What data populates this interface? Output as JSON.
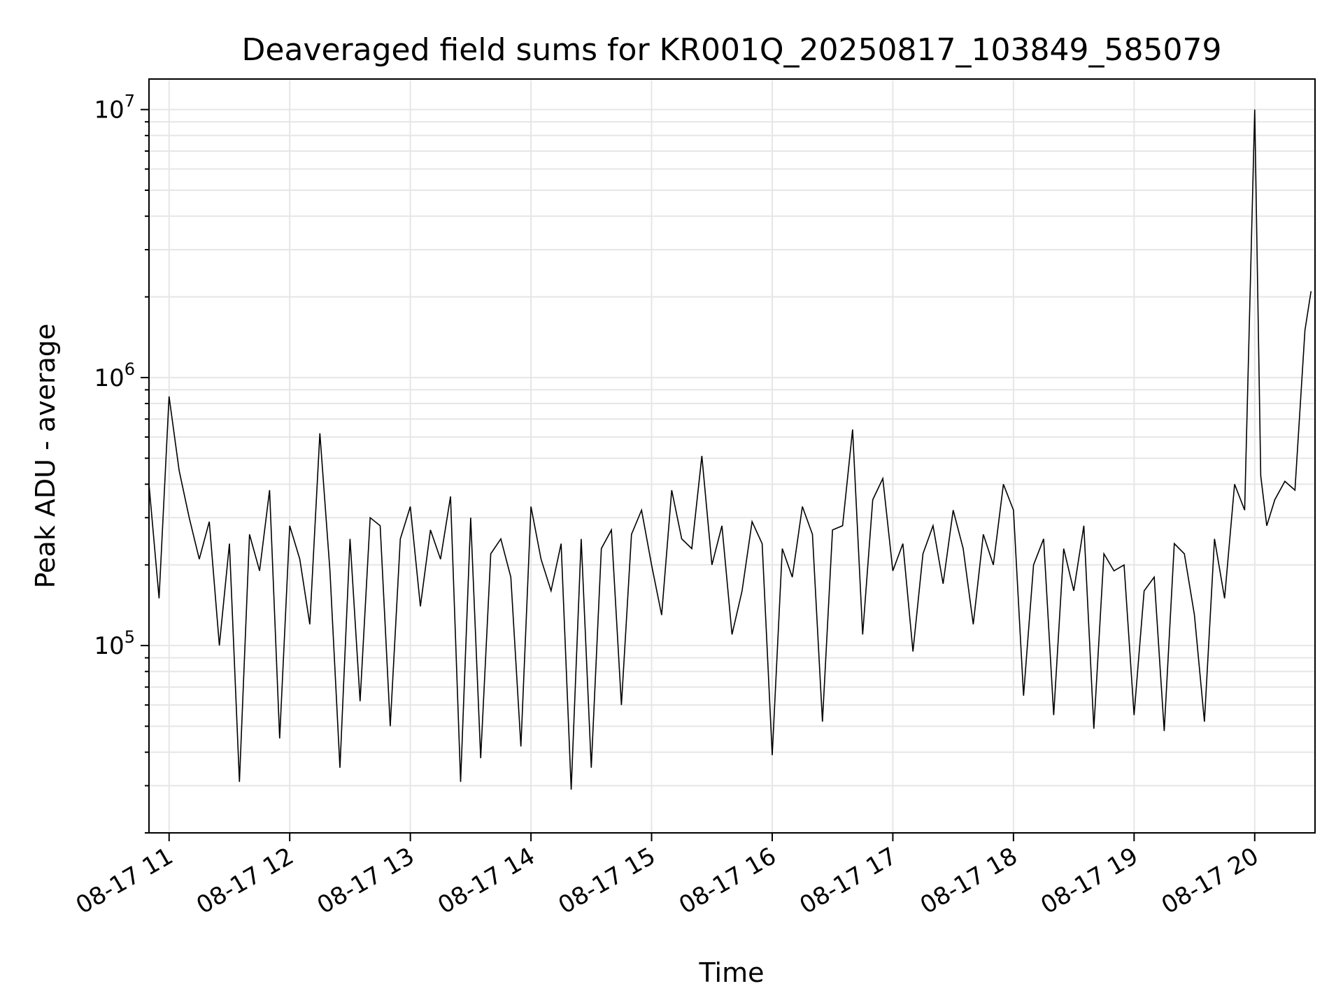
{
  "chart_data": {
    "type": "line",
    "title": "Deaveraged field sums for KR001Q_20250817_103849_585079",
    "xlabel": "Time",
    "ylabel": "Peak ADU - average",
    "yscale": "log",
    "ylim": [
      20000,
      13000000
    ],
    "xlim": [
      "2025-08-17 10:50",
      "2025-08-17 20:30"
    ],
    "grid": true,
    "line_color": "#000000",
    "x_ticks": [
      "08-17 11",
      "08-17 12",
      "08-17 13",
      "08-17 14",
      "08-17 15",
      "08-17 16",
      "08-17 17",
      "08-17 18",
      "08-17 19",
      "08-17 20"
    ],
    "y_ticks": [
      {
        "value": 100000,
        "base": "10",
        "exp": "5"
      },
      {
        "value": 1000000,
        "base": "10",
        "exp": "6"
      },
      {
        "value": 10000000,
        "base": "10",
        "exp": "7"
      }
    ],
    "series": [
      {
        "x": [
          "2025-08-17 10:50",
          "2025-08-17 10:55",
          "2025-08-17 11:00",
          "2025-08-17 11:05",
          "2025-08-17 11:10",
          "2025-08-17 11:15",
          "2025-08-17 11:20",
          "2025-08-17 11:25",
          "2025-08-17 11:30",
          "2025-08-17 11:35",
          "2025-08-17 11:40",
          "2025-08-17 11:45",
          "2025-08-17 11:50",
          "2025-08-17 11:55",
          "2025-08-17 12:00",
          "2025-08-17 12:05",
          "2025-08-17 12:10",
          "2025-08-17 12:15",
          "2025-08-17 12:20",
          "2025-08-17 12:25",
          "2025-08-17 12:30",
          "2025-08-17 12:35",
          "2025-08-17 12:40",
          "2025-08-17 12:45",
          "2025-08-17 12:50",
          "2025-08-17 12:55",
          "2025-08-17 13:00",
          "2025-08-17 13:05",
          "2025-08-17 13:10",
          "2025-08-17 13:15",
          "2025-08-17 13:20",
          "2025-08-17 13:25",
          "2025-08-17 13:30",
          "2025-08-17 13:35",
          "2025-08-17 13:40",
          "2025-08-17 13:45",
          "2025-08-17 13:50",
          "2025-08-17 13:55",
          "2025-08-17 14:00",
          "2025-08-17 14:05",
          "2025-08-17 14:10",
          "2025-08-17 14:15",
          "2025-08-17 14:20",
          "2025-08-17 14:25",
          "2025-08-17 14:30",
          "2025-08-17 14:35",
          "2025-08-17 14:40",
          "2025-08-17 14:45",
          "2025-08-17 14:50",
          "2025-08-17 14:55",
          "2025-08-17 15:00",
          "2025-08-17 15:05",
          "2025-08-17 15:10",
          "2025-08-17 15:15",
          "2025-08-17 15:20",
          "2025-08-17 15:25",
          "2025-08-17 15:30",
          "2025-08-17 15:35",
          "2025-08-17 15:40",
          "2025-08-17 15:45",
          "2025-08-17 15:50",
          "2025-08-17 15:55",
          "2025-08-17 16:00",
          "2025-08-17 16:05",
          "2025-08-17 16:10",
          "2025-08-17 16:15",
          "2025-08-17 16:20",
          "2025-08-17 16:25",
          "2025-08-17 16:30",
          "2025-08-17 16:35",
          "2025-08-17 16:40",
          "2025-08-17 16:45",
          "2025-08-17 16:50",
          "2025-08-17 16:55",
          "2025-08-17 17:00",
          "2025-08-17 17:05",
          "2025-08-17 17:10",
          "2025-08-17 17:15",
          "2025-08-17 17:20",
          "2025-08-17 17:25",
          "2025-08-17 17:30",
          "2025-08-17 17:35",
          "2025-08-17 17:40",
          "2025-08-17 17:45",
          "2025-08-17 17:50",
          "2025-08-17 17:55",
          "2025-08-17 18:00",
          "2025-08-17 18:05",
          "2025-08-17 18:10",
          "2025-08-17 18:15",
          "2025-08-17 18:20",
          "2025-08-17 18:25",
          "2025-08-17 18:30",
          "2025-08-17 18:35",
          "2025-08-17 18:40",
          "2025-08-17 18:45",
          "2025-08-17 18:50",
          "2025-08-17 18:55",
          "2025-08-17 19:00",
          "2025-08-17 19:05",
          "2025-08-17 19:10",
          "2025-08-17 19:15",
          "2025-08-17 19:20",
          "2025-08-17 19:25",
          "2025-08-17 19:30",
          "2025-08-17 19:35",
          "2025-08-17 19:40",
          "2025-08-17 19:45",
          "2025-08-17 19:50",
          "2025-08-17 19:55",
          "2025-08-17 20:00",
          "2025-08-17 20:03",
          "2025-08-17 20:06",
          "2025-08-17 20:10",
          "2025-08-17 20:15",
          "2025-08-17 20:20",
          "2025-08-17 20:25",
          "2025-08-17 20:28"
        ],
        "y": [
          400000,
          150000,
          850000,
          450000,
          300000,
          210000,
          290000,
          100000,
          240000,
          31000,
          260000,
          190000,
          380000,
          45000,
          280000,
          210000,
          120000,
          620000,
          190000,
          35000,
          250000,
          62000,
          300000,
          280000,
          50000,
          250000,
          330000,
          140000,
          270000,
          210000,
          360000,
          31000,
          300000,
          38000,
          220000,
          250000,
          180000,
          42000,
          330000,
          210000,
          160000,
          240000,
          29000,
          250000,
          35000,
          230000,
          270000,
          60000,
          260000,
          320000,
          200000,
          130000,
          380000,
          250000,
          230000,
          510000,
          200000,
          280000,
          110000,
          160000,
          290000,
          240000,
          39000,
          230000,
          180000,
          330000,
          260000,
          52000,
          270000,
          280000,
          640000,
          110000,
          350000,
          420000,
          190000,
          240000,
          95000,
          220000,
          280000,
          170000,
          320000,
          230000,
          120000,
          260000,
          200000,
          400000,
          320000,
          65000,
          200000,
          250000,
          55000,
          230000,
          160000,
          280000,
          49000,
          220000,
          190000,
          200000,
          55000,
          160000,
          180000,
          48000,
          240000,
          220000,
          130000,
          52000,
          250000,
          150000,
          400000,
          320000,
          10000000,
          430000,
          280000,
          350000,
          410000,
          380000,
          1500000,
          2100000
        ]
      }
    ]
  }
}
